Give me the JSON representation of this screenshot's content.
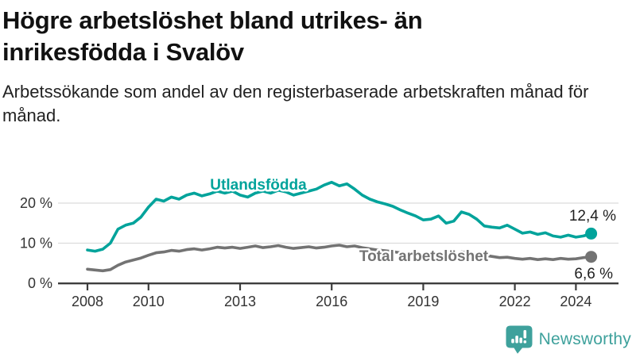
{
  "colors": {
    "foreign_born_line": "#00a39b",
    "total_line": "#737373",
    "grid": "#dcdcdc",
    "axis": "#3d3d3d",
    "text": "#111111",
    "brand": "#3ea19c"
  },
  "chart_data": {
    "type": "line",
    "title": "Högre arbetslöshet bland utrikes- än inrikesfödda i Svalöv",
    "subtitle": "Arbetssökande som andel av den registerbaserade arbetskraften månad för månad.",
    "unit": "%",
    "resolution": "quarterly estimates read from monthly line",
    "ylim": [
      0,
      26
    ],
    "xlim": [
      2008,
      2024.6
    ],
    "grid": "horizontal",
    "y_tick_labels": [
      "20 %",
      "10 %",
      "0 %"
    ],
    "y_tick_values": [
      20,
      10,
      0
    ],
    "x_tick_labels": [
      "2008",
      "2010",
      "2013",
      "2016",
      "2019",
      "2022",
      "2024"
    ],
    "x_tick_years": [
      2008,
      2010,
      2013,
      2016,
      2019,
      2022,
      2024
    ],
    "x": [
      2008,
      2008.25,
      2008.5,
      2008.75,
      2009,
      2009.25,
      2009.5,
      2009.75,
      2010,
      2010.25,
      2010.5,
      2010.75,
      2011,
      2011.25,
      2011.5,
      2011.75,
      2012,
      2012.25,
      2012.5,
      2012.75,
      2013,
      2013.25,
      2013.5,
      2013.75,
      2014,
      2014.25,
      2014.5,
      2014.75,
      2015,
      2015.25,
      2015.5,
      2015.75,
      2016,
      2016.25,
      2016.5,
      2016.75,
      2017,
      2017.25,
      2017.5,
      2017.75,
      2018,
      2018.25,
      2018.5,
      2018.75,
      2019,
      2019.25,
      2019.5,
      2019.75,
      2020,
      2020.25,
      2020.5,
      2020.75,
      2021,
      2021.25,
      2021.5,
      2021.75,
      2022,
      2022.25,
      2022.5,
      2022.75,
      2023,
      2023.25,
      2023.5,
      2023.75,
      2024,
      2024.25,
      2024.5
    ],
    "series": [
      {
        "name": "Utlandsfödda",
        "color": "#00a39b",
        "end_label": "12,4 %",
        "end_value": 12.4,
        "values": [
          8.3,
          8.0,
          8.5,
          10.0,
          13.5,
          14.5,
          15.0,
          16.5,
          19.0,
          21.0,
          20.5,
          21.5,
          21.0,
          22.0,
          22.5,
          21.8,
          22.3,
          23.0,
          22.5,
          23.0,
          22.0,
          21.5,
          22.5,
          23.0,
          22.5,
          23.2,
          22.8,
          22.0,
          22.5,
          23.0,
          23.5,
          24.5,
          25.2,
          24.3,
          24.8,
          23.5,
          22.0,
          21.0,
          20.3,
          19.8,
          19.2,
          18.3,
          17.5,
          16.8,
          15.8,
          16.0,
          16.8,
          15.0,
          15.5,
          17.8,
          17.2,
          16.0,
          14.3,
          14.0,
          13.8,
          14.5,
          13.5,
          12.5,
          12.8,
          12.2,
          12.6,
          11.8,
          11.5,
          12.0,
          11.5,
          11.8,
          12.4
        ]
      },
      {
        "name": "Total arbetslöshet",
        "color": "#737373",
        "end_label": "6,6 %",
        "end_value": 6.6,
        "values": [
          3.5,
          3.3,
          3.1,
          3.4,
          4.5,
          5.3,
          5.8,
          6.3,
          7.0,
          7.6,
          7.8,
          8.2,
          8.0,
          8.4,
          8.6,
          8.3,
          8.6,
          9.0,
          8.8,
          9.0,
          8.7,
          9.0,
          9.3,
          8.9,
          9.1,
          9.4,
          9.0,
          8.7,
          8.9,
          9.1,
          8.8,
          9.0,
          9.3,
          9.5,
          9.1,
          9.3,
          8.9,
          8.6,
          8.3,
          8.1,
          7.9,
          7.6,
          7.3,
          7.1,
          7.0,
          6.8,
          7.0,
          6.7,
          6.9,
          7.8,
          7.6,
          7.3,
          7.0,
          6.7,
          6.4,
          6.5,
          6.2,
          6.0,
          6.2,
          5.9,
          6.1,
          5.9,
          6.2,
          6.0,
          6.1,
          6.4,
          6.6
        ]
      }
    ]
  },
  "footer": {
    "brand_name": "Newsworthy"
  }
}
